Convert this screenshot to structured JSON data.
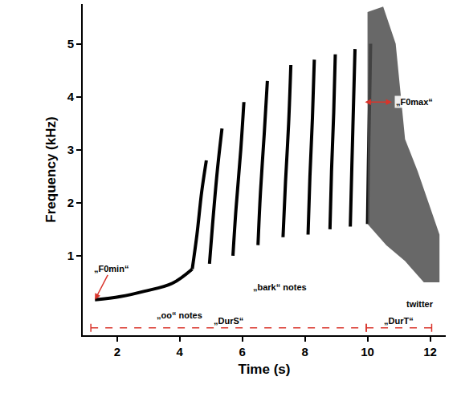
{
  "chart_data": {
    "type": "line",
    "xlabel": "Time (s)",
    "ylabel": "Frequency (kHz)",
    "xlim": [
      0.9,
      12.5
    ],
    "xticks": [
      2,
      4,
      6,
      8,
      10,
      12
    ],
    "ylim": [
      -0.5,
      5.75
    ],
    "yticks": [
      1,
      2,
      3,
      4,
      5
    ],
    "grid": false,
    "series": [
      {
        "type": "line",
        "color": "#000000",
        "x": [
          1.29,
          2.1,
          2.87,
          3.76,
          4.4
        ],
        "values": [
          0.17,
          0.23,
          0.33,
          0.48,
          0.75
        ]
      },
      {
        "type": "line",
        "color": "#000000",
        "x": [
          4.4,
          4.55,
          4.7,
          4.85
        ],
        "values": [
          0.75,
          1.4,
          2.2,
          2.8
        ]
      },
      {
        "type": "line",
        "color": "#000000",
        "x": [
          4.95,
          5.05,
          5.2,
          5.35
        ],
        "values": [
          0.85,
          1.6,
          2.6,
          3.4
        ]
      },
      {
        "type": "line",
        "color": "#000000",
        "x": [
          5.7,
          5.8,
          5.95,
          6.05
        ],
        "values": [
          1.0,
          1.9,
          3.0,
          3.9
        ]
      },
      {
        "type": "line",
        "color": "#000000",
        "x": [
          6.5,
          6.58,
          6.7,
          6.8
        ],
        "values": [
          1.2,
          2.2,
          3.3,
          4.3
        ]
      },
      {
        "type": "line",
        "color": "#000000",
        "x": [
          7.3,
          7.38,
          7.48,
          7.55
        ],
        "values": [
          1.35,
          2.4,
          3.5,
          4.6
        ]
      },
      {
        "type": "line",
        "color": "#000000",
        "x": [
          8.1,
          8.16,
          8.24,
          8.3
        ],
        "values": [
          1.4,
          2.5,
          3.6,
          4.7
        ]
      },
      {
        "type": "line",
        "color": "#000000",
        "x": [
          8.8,
          8.85,
          8.92,
          8.97
        ],
        "values": [
          1.5,
          2.6,
          3.7,
          4.8
        ]
      },
      {
        "type": "line",
        "color": "#000000",
        "x": [
          9.45,
          9.5,
          9.55,
          9.6
        ],
        "values": [
          1.55,
          2.7,
          3.8,
          4.9
        ]
      },
      {
        "type": "line",
        "color": "#000000",
        "x": [
          10.0,
          10.03,
          10.07,
          10.1
        ],
        "values": [
          1.6,
          2.8,
          4.0,
          5.0
        ]
      },
      {
        "type": "area",
        "color": "#4d4d4d",
        "x": [
          10.0,
          10.5,
          10.9,
          11.2,
          11.6,
          12.0,
          12.3,
          12.3,
          11.8,
          11.2,
          10.6,
          10.0
        ],
        "values": [
          5.6,
          5.7,
          5.0,
          3.2,
          2.6,
          1.9,
          1.4,
          0.5,
          0.5,
          0.9,
          1.2,
          1.6
        ]
      }
    ],
    "annotations": [
      {
        "text": "„oo“ notes",
        "x": 4.0,
        "y": -0.12
      },
      {
        "text": "„bark“ notes",
        "x": 7.2,
        "y": 0.41
      },
      {
        "text": "twitter",
        "x": 11.67,
        "y": 0.09
      }
    ],
    "F0min": {
      "label": "„F0min“",
      "x": 1.29,
      "y": 0.17,
      "label_x": 1.8,
      "label_y": 0.75
    },
    "F0max": {
      "label": "„F0max“",
      "x0": 9.88,
      "x1": 10.78,
      "y": 3.9
    },
    "durations": [
      {
        "label": "„DurS“",
        "x0": 1.16,
        "x1": 9.96,
        "y": -0.36
      },
      {
        "label": "„DurT“",
        "x0": 9.96,
        "x1": 12.05,
        "y": -0.36
      }
    ]
  }
}
